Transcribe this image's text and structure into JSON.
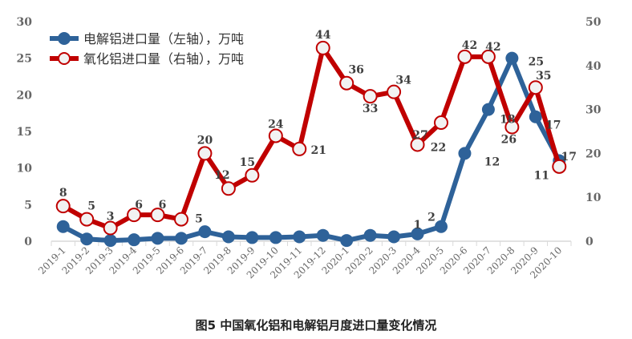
{
  "chart_data": {
    "type": "line",
    "title": "图5 中国氧化铝和电解铝月度进口量变化情况",
    "categories": [
      "2019-1",
      "2019-2",
      "2019-3",
      "2019-4",
      "2019-5",
      "2019-6",
      "2019-7",
      "2019-8",
      "2019-9",
      "2019-10",
      "2019-11",
      "2019-12",
      "2020-1",
      "2020-2",
      "2020-3",
      "2020-4",
      "2020-5",
      "2020-6",
      "2020-7",
      "2020-8",
      "2020-9",
      "2020-10"
    ],
    "y_left": {
      "range": [
        0,
        30
      ],
      "ticks": [
        0,
        5,
        10,
        15,
        20,
        25,
        30
      ]
    },
    "y_right": {
      "range": [
        0,
        50
      ],
      "ticks": [
        0,
        10,
        20,
        30,
        40,
        50
      ]
    },
    "grid": false,
    "legend_position": "top-left",
    "series": [
      {
        "name": "电解铝进口量（左轴），万吨",
        "axis": "left",
        "color": "#2E6299",
        "values": [
          2.0,
          0.3,
          0.1,
          0.2,
          0.4,
          0.4,
          1.3,
          0.6,
          0.5,
          0.5,
          0.6,
          0.8,
          0.1,
          0.8,
          0.6,
          1,
          2,
          12,
          18,
          25,
          17,
          11
        ],
        "labels": [
          "",
          "",
          "",
          "",
          "",
          "",
          "",
          "",
          "",
          "",
          "",
          "",
          "",
          "",
          "",
          "1",
          "2",
          "12",
          "18",
          "25",
          "17",
          "11"
        ]
      },
      {
        "name": "氧化铝进口量（右轴），万吨",
        "axis": "right",
        "color": "#C00000",
        "values": [
          8,
          5,
          3,
          6,
          6,
          5,
          20,
          12,
          15,
          24,
          21,
          44,
          36,
          33,
          34,
          22,
          27,
          42,
          42,
          26,
          35,
          17
        ],
        "labels": [
          "8",
          "5",
          "3",
          "6",
          "6",
          "5",
          "20",
          "12",
          "15",
          "24",
          "21",
          "44",
          "36",
          "33",
          "34",
          "22",
          "27",
          "42",
          "42",
          "26",
          "35",
          "17"
        ]
      }
    ]
  }
}
